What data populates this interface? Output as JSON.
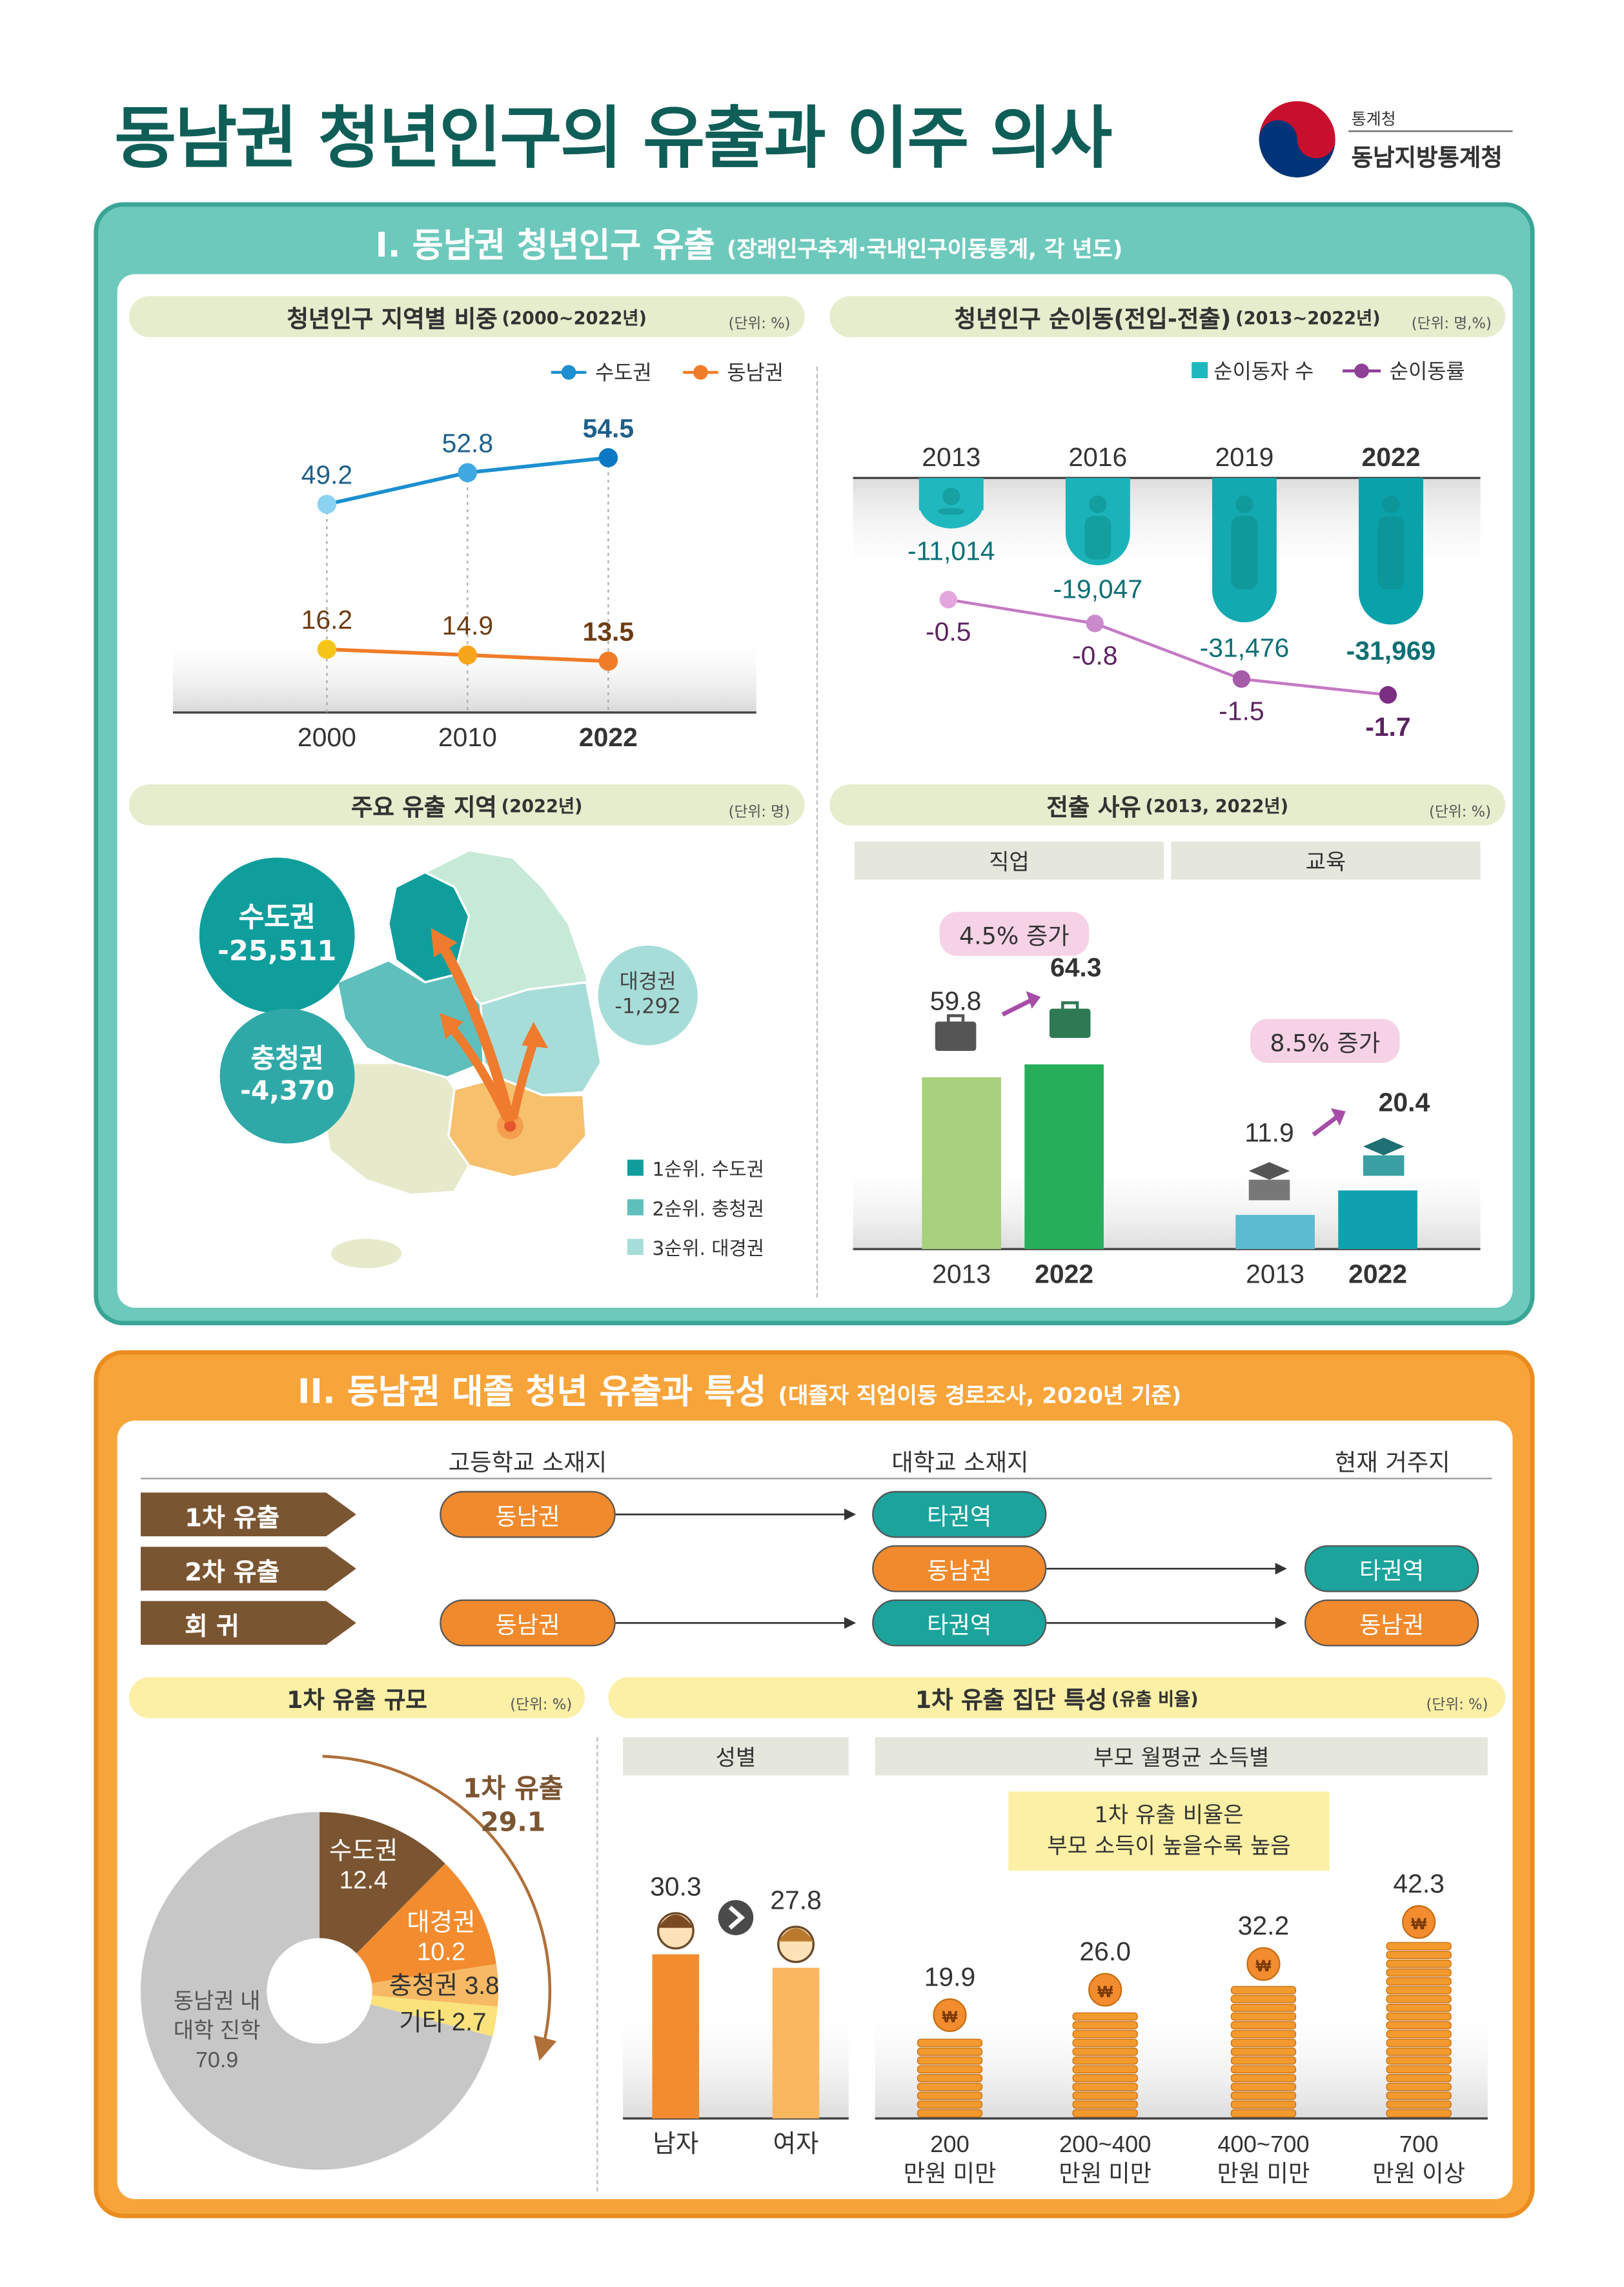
{
  "header": {
    "title": "동남권 청년인구의 유출과 이주 의사",
    "org_small": "통계청",
    "org_main": "동남지방통계청"
  },
  "section1": {
    "title": "I. 동남권 청년인구 유출",
    "source": "(장래인구추계·국내인구이동통계, 각 년도)"
  },
  "section2": {
    "title": "II. 동남권 대졸 청년 유출과 특성",
    "source": "(대졸자 직업이동 경로조사, 2020년 기준)"
  },
  "panels": {
    "p1": {
      "title": "청년인구 지역별 비중",
      "period": "(2000~2022년)",
      "unit": "(단위: %)"
    },
    "p2": {
      "title": "청년인구 순이동(전입-전출)",
      "period": "(2013~2022년)",
      "unit": "(단위: 명,%)"
    },
    "p3": {
      "title": "주요 유출 지역",
      "period": "(2022년)",
      "unit": "(단위: 명)"
    },
    "p4": {
      "title": "전출 사유",
      "period": "(2013, 2022년)",
      "unit": "(단위: %)"
    },
    "p5": {
      "title": "1차 유출 규모",
      "unit": "(단위: %)"
    },
    "p6": {
      "title": "1차 유출 집단 특성",
      "period": "(유출 비율)",
      "unit": "(단위: %)"
    }
  },
  "chart_data": [
    {
      "type": "line",
      "x": [
        "2000",
        "2010",
        "2022"
      ],
      "series": [
        {
          "name": "수도권",
          "values": [
            49.2,
            52.8,
            54.5
          ],
          "labels": [
            "49.2",
            "52.8",
            "54.5"
          ],
          "color": "#1b8fd0"
        },
        {
          "name": "동남권",
          "values": [
            16.2,
            14.9,
            13.5
          ],
          "labels": [
            "16.2",
            "14.9",
            "13.5"
          ],
          "color": "#f07c28"
        }
      ]
    },
    {
      "type": "bar",
      "categories": [
        "2013",
        "2016",
        "2019",
        "2022"
      ],
      "series": [
        {
          "name": "순이동자 수",
          "values": [
            -11014,
            -19047,
            -31476,
            -31969
          ],
          "labels": [
            "-11,014",
            "-19,047",
            "-31,476",
            "-31,969"
          ],
          "color": "#1fb8be"
        },
        {
          "name": "순이동률",
          "values": [
            -0.5,
            -0.8,
            -1.5,
            -1.7
          ],
          "labels": [
            "-0.5",
            "-0.8",
            "-1.5",
            "-1.7"
          ],
          "color": "#8e3f96"
        }
      ]
    },
    {
      "type": "other",
      "regions": [
        {
          "name": "수도권",
          "value": "-25,511"
        },
        {
          "name": "충청권",
          "value": "-4,370"
        },
        {
          "name": "대경권",
          "value": "-1,292"
        }
      ],
      "legend": [
        "1순위. 수도권",
        "2순위. 충청권",
        "3순위. 대경권"
      ]
    },
    {
      "type": "bar",
      "groups": [
        {
          "name": "직업",
          "categories": [
            "2013",
            "2022"
          ],
          "values": [
            59.8,
            64.3
          ],
          "labels": [
            "59.8",
            "64.3"
          ],
          "change": "4.5% 증가"
        },
        {
          "name": "교육",
          "categories": [
            "2013",
            "2022"
          ],
          "values": [
            11.9,
            20.4
          ],
          "labels": [
            "11.9",
            "20.4"
          ],
          "change": "8.5% 증가"
        }
      ]
    },
    {
      "type": "pie",
      "slices": [
        {
          "name": "수도권",
          "value": 12.4,
          "label": "12.4",
          "color": "#7b5531"
        },
        {
          "name": "대경권",
          "value": 10.2,
          "label": "10.2",
          "color": "#f28c2f"
        },
        {
          "name": "충청권",
          "value": 3.8,
          "label": "3.8",
          "color": "#f7b964"
        },
        {
          "name": "기타",
          "value": 2.7,
          "label": "2.7",
          "color": "#fbe27b"
        },
        {
          "name": "동남권 내 대학 진학",
          "value": 70.9,
          "label": "70.9",
          "color": "#c7c7c7"
        }
      ],
      "annotation": {
        "text": "1차 유출",
        "value": "29.1"
      }
    },
    {
      "type": "bar",
      "group": "성별",
      "categories": [
        "남자",
        "여자"
      ],
      "values": [
        30.3,
        27.8
      ],
      "labels": [
        "30.3",
        "27.8"
      ]
    },
    {
      "type": "bar",
      "group": "부모 월평균 소득별",
      "categories": [
        "200\n만원 미만",
        "200~400\n만원 미만",
        "400~700\n만원 미만",
        "700\n만원 이상"
      ],
      "values": [
        19.9,
        26.0,
        32.2,
        42.3
      ],
      "labels": [
        "19.9",
        "26.0",
        "32.2",
        "42.3"
      ],
      "note_lines": [
        "1차 유출 비율은",
        "부모 소득이 높을수록 높음"
      ]
    }
  ],
  "flow": {
    "headers": [
      "고등학교 소재지",
      "대학교 소재지",
      "현재 거주지"
    ],
    "rows": [
      {
        "tag": "1차 유출",
        "high": "동남권",
        "univ": "타권역",
        "now": ""
      },
      {
        "tag": "2차 유출",
        "high": "",
        "univ": "동남권",
        "now": "타권역"
      },
      {
        "tag": "회 귀",
        "high": "동남권",
        "univ": "타권역",
        "now": "동남권"
      }
    ]
  },
  "sublabels": {
    "job": "직업",
    "edu": "교육",
    "gender": "성별",
    "income": "부모 월평균 소득별"
  }
}
